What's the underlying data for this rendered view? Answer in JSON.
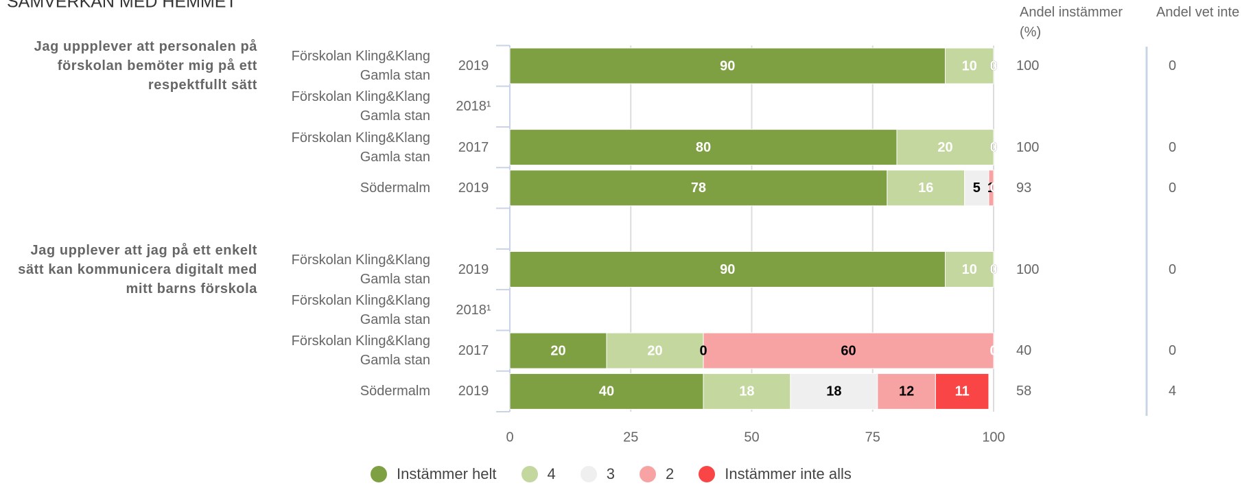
{
  "chart_data": {
    "type": "bar",
    "orientation": "horizontal",
    "stacked": true,
    "title": "SAMVERKAN MED HEMMET",
    "agree_header": "Andel instämmer (%)",
    "dont_know_header": "Andel vet inte (%)",
    "xlim": [
      0,
      100
    ],
    "xticks": [
      0,
      25,
      50,
      75,
      100
    ],
    "grid": true,
    "legend": "bottom",
    "series": [
      {
        "name": "Instämmer helt",
        "color": "#7f9f43",
        "label_color": "#ffffff"
      },
      {
        "name": "4",
        "color": "#c3d79e",
        "label_color": "#ffffff"
      },
      {
        "name": "3",
        "color": "#efefef",
        "label_color": "#000000"
      },
      {
        "name": "2",
        "color": "#f8a3a3",
        "label_color": "#000000"
      },
      {
        "name": "Instämmer inte alls",
        "color": "#f94545",
        "label_color": "#ffffff"
      }
    ],
    "groups": [
      {
        "question": "Jag uppplever att personalen på förskolan bemöter mig på ett respektfullt sätt",
        "units": [
          "Förskolan Kling&Klang Gamla stan",
          "Förskolan Kling&Klang Gamla stan",
          "Förskolan Kling&Klang Gamla stan",
          "Södermalm"
        ],
        "years": [
          "2019",
          "2018¹",
          "2017",
          "2019"
        ],
        "values": [
          [
            90,
            10,
            0,
            0,
            0
          ],
          null,
          [
            80,
            20,
            0,
            0,
            0
          ],
          [
            78,
            16,
            5,
            1,
            0
          ]
        ],
        "agree": [
          100,
          null,
          100,
          93
        ],
        "dont_know": [
          0,
          null,
          0,
          0
        ]
      },
      {
        "question": "Jag upplever att jag på ett enkelt sätt kan kommunicera digitalt med mitt barns förskola",
        "units": [
          "Förskolan Kling&Klang Gamla stan",
          "Förskolan Kling&Klang Gamla stan",
          "Förskolan Kling&Klang Gamla stan",
          "Södermalm"
        ],
        "years": [
          "2019",
          "2018¹",
          "2017",
          "2019"
        ],
        "values": [
          [
            90,
            10,
            0,
            0,
            0
          ],
          null,
          [
            20,
            20,
            0,
            60,
            0
          ],
          [
            40,
            18,
            18,
            12,
            11
          ]
        ],
        "agree": [
          100,
          null,
          40,
          58
        ],
        "dont_know": [
          0,
          null,
          0,
          4
        ]
      }
    ]
  }
}
